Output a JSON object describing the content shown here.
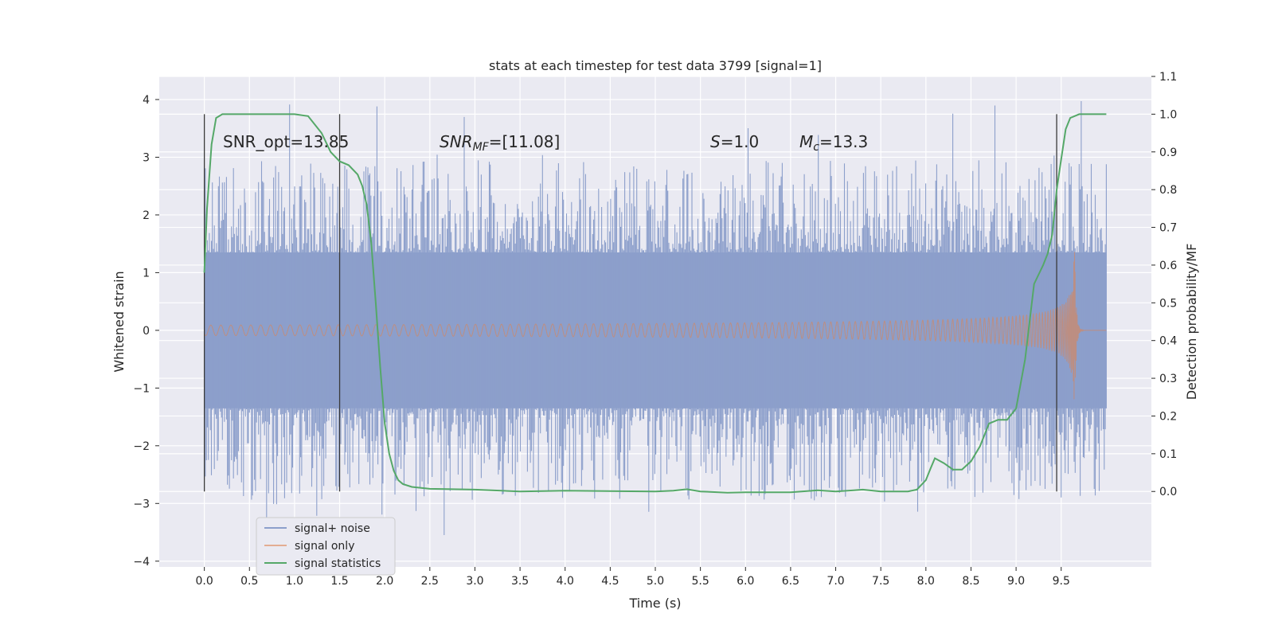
{
  "chart_data": {
    "type": "line",
    "title": "stats at each timestep for test data 3799 [signal=1]",
    "xlabel": "Time (s)",
    "ylabel_left": "Whitened strain",
    "ylabel_right": "Detection probability/MF",
    "x_ticks": [
      "0.0",
      "0.5",
      "1.0",
      "1.5",
      "2.0",
      "2.5",
      "3.0",
      "3.5",
      "4.0",
      "4.5",
      "5.0",
      "5.5",
      "6.0",
      "6.5",
      "7.0",
      "7.5",
      "8.0",
      "8.5",
      "9.0",
      "9.5"
    ],
    "y_left_ticks": [
      "4",
      "3",
      "2",
      "1",
      "0",
      "−1",
      "−2",
      "−3",
      "−4"
    ],
    "y_right_ticks": [
      "1.1",
      "1.0",
      "0.9",
      "0.8",
      "0.7",
      "0.6",
      "0.5",
      "0.4",
      "0.3",
      "0.2",
      "0.1",
      "0.0"
    ],
    "xlim": [
      -0.5,
      10.5
    ],
    "ylim_left": [
      -4.1,
      4.4
    ],
    "ylim_right": [
      -0.2,
      1.1
    ],
    "grid": true,
    "legend_placement": "lower-left",
    "annotations": {
      "snr_opt": "SNR_opt=13.85",
      "snr_mf_main": "SNR",
      "snr_mf_sub": "MF",
      "snr_mf_rest": "=[11.08]",
      "s_main": "S",
      "s_rest": "=1.0",
      "mc_main": "M",
      "mc_sub": "c",
      "mc_rest": "=13.3"
    },
    "vertical_markers_x": [
      0.0,
      1.5,
      9.45
    ],
    "series": [
      {
        "name": "signal+ noise",
        "color": "#8c9fcb",
        "kind": "noise",
        "x_range": [
          0.0,
          10.0
        ],
        "typical_band": [
          -1.35,
          1.35
        ],
        "extreme_range": [
          -3.7,
          4.05
        ]
      },
      {
        "name": "signal only",
        "color": "#dd8452",
        "kind": "chirp",
        "x_range": [
          0.0,
          10.0
        ],
        "merger_time": 9.65,
        "peak_amplitude": 1.75
      },
      {
        "name": "signal statistics",
        "color": "#55a868",
        "kind": "line",
        "x": [
          0.0,
          0.03,
          0.08,
          0.13,
          0.2,
          0.3,
          0.5,
          0.8,
          1.0,
          1.15,
          1.3,
          1.4,
          1.5,
          1.6,
          1.7,
          1.75,
          1.8,
          1.85,
          1.9,
          1.95,
          2.0,
          2.05,
          2.1,
          2.15,
          2.2,
          2.3,
          2.5,
          3.0,
          3.5,
          4.0,
          5.0,
          5.2,
          5.35,
          5.5,
          5.8,
          6.0,
          6.5,
          6.8,
          7.0,
          7.2,
          7.3,
          7.5,
          7.8,
          7.9,
          8.0,
          8.05,
          8.1,
          8.2,
          8.3,
          8.4,
          8.5,
          8.6,
          8.7,
          8.8,
          8.9,
          9.0,
          9.1,
          9.2,
          9.3,
          9.35,
          9.4,
          9.45,
          9.5,
          9.55,
          9.6,
          9.7,
          9.8,
          10.0
        ],
        "y": [
          0.58,
          0.75,
          0.92,
          0.99,
          1.0,
          1.0,
          1.0,
          1.0,
          1.0,
          0.995,
          0.95,
          0.9,
          0.875,
          0.865,
          0.84,
          0.81,
          0.76,
          0.66,
          0.5,
          0.33,
          0.18,
          0.1,
          0.055,
          0.03,
          0.02,
          0.012,
          0.007,
          0.005,
          0.0,
          0.002,
          0.0,
          0.002,
          0.006,
          0.0,
          -0.003,
          -0.002,
          -0.002,
          0.003,
          0.0,
          0.003,
          0.005,
          0.0,
          0.0,
          0.005,
          0.03,
          0.06,
          0.088,
          0.075,
          0.058,
          0.058,
          0.08,
          0.12,
          0.18,
          0.19,
          0.19,
          0.22,
          0.35,
          0.55,
          0.6,
          0.63,
          0.68,
          0.8,
          0.88,
          0.96,
          0.99,
          1.0,
          1.0,
          1.0
        ]
      }
    ]
  }
}
